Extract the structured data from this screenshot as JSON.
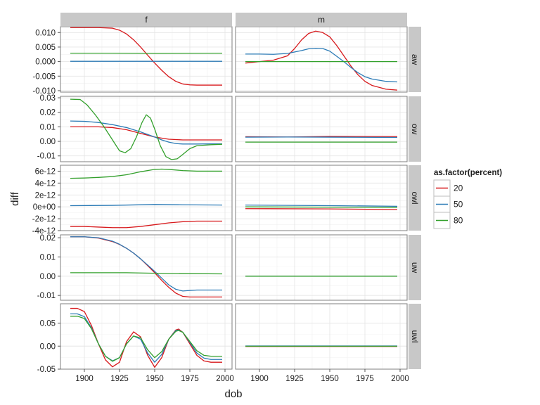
{
  "chart_data": {
    "type": "line",
    "xlabel": "dob",
    "ylabel": "diff",
    "xlim": [
      1883,
      2005
    ],
    "x_ticks": [
      1900,
      1925,
      1950,
      1975,
      2000
    ],
    "x_tick_labels": [
      "1900",
      "1925",
      "1950",
      "1975",
      "2000"
    ],
    "facet_cols": [
      "f",
      "m"
    ],
    "facet_rows": [
      "aw",
      "ow",
      "owl",
      "uw",
      "uwl"
    ],
    "legend": {
      "title": "as.factor(percent)",
      "placement": "right",
      "items": [
        {
          "label": "20",
          "color": "#d7191c"
        },
        {
          "label": "50",
          "color": "#2c7bb6"
        },
        {
          "label": "80",
          "color": "#33a02c"
        }
      ]
    },
    "colors": {
      "20": "#d7191c",
      "50": "#2c7bb6",
      "80": "#33a02c"
    },
    "rows": [
      {
        "name": "aw",
        "ylim": [
          -0.0105,
          0.012
        ],
        "y_ticks": [
          -0.01,
          -0.005,
          0,
          0.005,
          0.01
        ],
        "y_tick_labels": [
          "-0.010",
          "-0.005",
          "0.000",
          "0.005",
          "0.010"
        ],
        "panels": {
          "f": [
            {
              "percent": "20",
              "x": [
                1890,
                1900,
                1910,
                1920,
                1925,
                1930,
                1935,
                1940,
                1945,
                1950,
                1955,
                1960,
                1965,
                1970,
                1975,
                1980,
                1990,
                1998
              ],
              "y": [
                0.0117,
                0.0117,
                0.0117,
                0.0115,
                0.0108,
                0.0095,
                0.0075,
                0.005,
                0.0022,
                -0.0005,
                -0.003,
                -0.0052,
                -0.0068,
                -0.0077,
                -0.008,
                -0.0081,
                -0.0081,
                -0.0081
              ]
            },
            {
              "percent": "50",
              "x": [
                1890,
                1998
              ],
              "y": [
                0.0001,
                0.0001
              ]
            },
            {
              "percent": "80",
              "x": [
                1890,
                1920,
                1950,
                1998
              ],
              "y": [
                0.0029,
                0.0029,
                0.0028,
                0.0029
              ]
            }
          ],
          "m": [
            {
              "percent": "20",
              "x": [
                1890,
                1900,
                1910,
                1920,
                1925,
                1930,
                1935,
                1940,
                1945,
                1950,
                1955,
                1960,
                1965,
                1970,
                1975,
                1980,
                1990,
                1998
              ],
              "y": [
                -0.0005,
                0,
                0.0005,
                0.002,
                0.0045,
                0.0075,
                0.0097,
                0.0105,
                0.01,
                0.0085,
                0.0055,
                0.002,
                -0.0015,
                -0.0045,
                -0.0068,
                -0.0082,
                -0.0095,
                -0.0098
              ]
            },
            {
              "percent": "50",
              "x": [
                1890,
                1900,
                1910,
                1920,
                1930,
                1935,
                1940,
                1945,
                1950,
                1955,
                1960,
                1965,
                1970,
                1975,
                1980,
                1990,
                1998
              ],
              "y": [
                0.0026,
                0.0026,
                0.0025,
                0.0028,
                0.0038,
                0.0044,
                0.0046,
                0.0045,
                0.0036,
                0.0018,
                0,
                -0.002,
                -0.0038,
                -0.0052,
                -0.006,
                -0.0068,
                -0.007
              ]
            },
            {
              "percent": "80",
              "x": [
                1890,
                1998
              ],
              "y": [
                0,
                0
              ]
            }
          ]
        }
      },
      {
        "name": "ow",
        "ylim": [
          -0.014,
          0.031
        ],
        "y_ticks": [
          -0.01,
          0,
          0.01,
          0.02,
          0.03
        ],
        "y_tick_labels": [
          "-0.01",
          "0.00",
          "0.01",
          "0.02",
          "0.03"
        ],
        "panels": {
          "f": [
            {
              "percent": "20",
              "x": [
                1890,
                1900,
                1910,
                1920,
                1930,
                1940,
                1950,
                1960,
                1970,
                1980,
                1990,
                1998
              ],
              "y": [
                0.01,
                0.01,
                0.01,
                0.0095,
                0.008,
                0.0055,
                0.003,
                0.0015,
                0.001,
                0.001,
                0.001,
                0.001
              ]
            },
            {
              "percent": "50",
              "x": [
                1890,
                1900,
                1910,
                1920,
                1930,
                1940,
                1950,
                1955,
                1960,
                1965,
                1970,
                1980,
                1990,
                1998
              ],
              "y": [
                0.014,
                0.0138,
                0.013,
                0.0115,
                0.0095,
                0.0065,
                0.003,
                0.001,
                -0.0005,
                -0.0015,
                -0.0018,
                -0.0018,
                -0.0017,
                -0.0017
              ]
            },
            {
              "percent": "80",
              "x": [
                1890,
                1897,
                1902,
                1908,
                1914,
                1920,
                1925,
                1929,
                1933,
                1937,
                1941,
                1944,
                1947,
                1950,
                1954,
                1958,
                1962,
                1966,
                1970,
                1975,
                1980,
                1990,
                1998
              ],
              "y": [
                0.029,
                0.0288,
                0.025,
                0.018,
                0.01,
                0.001,
                -0.0065,
                -0.0078,
                -0.005,
                0.003,
                0.013,
                0.0183,
                0.016,
                0.0085,
                -0.003,
                -0.0105,
                -0.0125,
                -0.012,
                -0.009,
                -0.005,
                -0.003,
                -0.0023,
                -0.002
              ]
            }
          ],
          "m": [
            {
              "percent": "20",
              "x": [
                1890,
                1920,
                1950,
                1998
              ],
              "y": [
                0.0032,
                0.003,
                0.0034,
                0.0033
              ]
            },
            {
              "percent": "50",
              "x": [
                1890,
                1920,
                1950,
                1998
              ],
              "y": [
                0.0029,
                0.003,
                0.0029,
                0.0027
              ]
            },
            {
              "percent": "80",
              "x": [
                1890,
                1998
              ],
              "y": [
                -0.0005,
                -0.0005
              ]
            }
          ]
        }
      },
      {
        "name": "owl",
        "ylim": [
          -4e-12,
          7e-12
        ],
        "y_ticks": [
          -4e-12,
          -2e-12,
          0,
          2e-12,
          4e-12,
          6e-12
        ],
        "y_tick_labels": [
          "-4e-12",
          "-2e-12",
          "0e+00",
          "2e-12",
          "4e-12",
          "6e-12"
        ],
        "panels": {
          "f": [
            {
              "percent": "20",
              "x": [
                1890,
                1900,
                1910,
                1920,
                1925,
                1930,
                1940,
                1950,
                1960,
                1970,
                1980,
                1990,
                1998
              ],
              "y": [
                -3.3e-12,
                -3.3e-12,
                -3.4e-12,
                -3.5e-12,
                -3.5e-12,
                -3.5e-12,
                -3.3e-12,
                -3e-12,
                -2.7e-12,
                -2.5e-12,
                -2.4e-12,
                -2.4e-12,
                -2.4e-12
              ]
            },
            {
              "percent": "50",
              "x": [
                1890,
                1920,
                1950,
                1970,
                1998
              ],
              "y": [
                2e-13,
                2.5e-13,
                4e-13,
                3.5e-13,
                3e-13
              ]
            },
            {
              "percent": "80",
              "x": [
                1890,
                1900,
                1910,
                1920,
                1930,
                1940,
                1950,
                1955,
                1960,
                1970,
                1980,
                1990,
                1998
              ],
              "y": [
                4.8e-12,
                4.85e-12,
                4.95e-12,
                5.1e-12,
                5.4e-12,
                5.9e-12,
                6.3e-12,
                6.35e-12,
                6.3e-12,
                6.1e-12,
                6e-12,
                6e-12,
                6e-12
              ]
            }
          ],
          "m": [
            {
              "percent": "20",
              "x": [
                1890,
                1950,
                1998
              ],
              "y": [
                -3e-13,
                -3.5e-13,
                -4.5e-13
              ]
            },
            {
              "percent": "50",
              "x": [
                1890,
                1950,
                1998
              ],
              "y": [
                3e-13,
                2e-13,
                1e-13
              ]
            },
            {
              "percent": "80",
              "x": [
                1890,
                1950,
                1998
              ],
              "y": [
                0,
                -5e-14,
                -1e-13
              ]
            }
          ]
        }
      },
      {
        "name": "uw",
        "ylim": [
          -0.0125,
          0.0215
        ],
        "y_ticks": [
          -0.01,
          0,
          0.01,
          0.02
        ],
        "y_tick_labels": [
          "-0.01",
          "0.00",
          "0.01",
          "0.02"
        ],
        "panels": {
          "f": [
            {
              "percent": "20",
              "x": [
                1890,
                1900,
                1910,
                1920,
                1925,
                1930,
                1935,
                1940,
                1945,
                1950,
                1955,
                1960,
                1965,
                1970,
                1975,
                1980,
                1990,
                1998
              ],
              "y": [
                0.0205,
                0.0205,
                0.0198,
                0.018,
                0.0165,
                0.0145,
                0.012,
                0.009,
                0.0055,
                0.0018,
                -0.0022,
                -0.0058,
                -0.0088,
                -0.0105,
                -0.0108,
                -0.0108,
                -0.0108,
                -0.0108
              ]
            },
            {
              "percent": "50",
              "x": [
                1890,
                1900,
                1910,
                1920,
                1925,
                1930,
                1935,
                1940,
                1945,
                1950,
                1955,
                1960,
                1965,
                1970,
                1975,
                1980,
                1990,
                1998
              ],
              "y": [
                0.0205,
                0.0205,
                0.02,
                0.0182,
                0.0166,
                0.0145,
                0.012,
                0.009,
                0.0058,
                0.0025,
                -0.001,
                -0.0045,
                -0.0068,
                -0.0077,
                -0.0074,
                -0.0072,
                -0.0072,
                -0.0072
              ]
            },
            {
              "percent": "80",
              "x": [
                1890,
                1930,
                1960,
                1998
              ],
              "y": [
                0.0018,
                0.0018,
                0.0014,
                0.0012
              ]
            }
          ],
          "m": [
            {
              "percent": "20",
              "x": [
                1890,
                1998
              ],
              "y": [
                0,
                0
              ]
            },
            {
              "percent": "50",
              "x": [
                1890,
                1998
              ],
              "y": [
                0,
                0
              ]
            },
            {
              "percent": "80",
              "x": [
                1890,
                1998
              ],
              "y": [
                0,
                0
              ]
            }
          ]
        }
      },
      {
        "name": "uwl",
        "ylim": [
          -0.05,
          0.092
        ],
        "y_ticks": [
          -0.05,
          0,
          0.05
        ],
        "y_tick_labels": [
          "-0.05",
          "0.00",
          "0.05"
        ],
        "panels": {
          "f": [
            {
              "percent": "20",
              "x": [
                1890,
                1895,
                1900,
                1905,
                1910,
                1915,
                1920,
                1925,
                1930,
                1935,
                1940,
                1945,
                1950,
                1955,
                1960,
                1965,
                1967,
                1970,
                1975,
                1980,
                1985,
                1990,
                1998
              ],
              "y": [
                0.082,
                0.082,
                0.075,
                0.045,
                0.005,
                -0.03,
                -0.045,
                -0.035,
                0.01,
                0.031,
                0.02,
                -0.02,
                -0.046,
                -0.025,
                0.015,
                0.035,
                0.037,
                0.03,
                0.005,
                -0.02,
                -0.032,
                -0.035,
                -0.035
              ]
            },
            {
              "percent": "50",
              "x": [
                1890,
                1895,
                1900,
                1905,
                1910,
                1915,
                1920,
                1925,
                1930,
                1935,
                1940,
                1945,
                1950,
                1955,
                1960,
                1965,
                1967,
                1970,
                1975,
                1980,
                1985,
                1990,
                1998
              ],
              "y": [
                0.07,
                0.07,
                0.064,
                0.04,
                0.005,
                -0.022,
                -0.032,
                -0.025,
                0.005,
                0.022,
                0.015,
                -0.015,
                -0.035,
                -0.018,
                0.015,
                0.034,
                0.035,
                0.03,
                0.008,
                -0.015,
                -0.026,
                -0.029,
                -0.029
              ]
            },
            {
              "percent": "80",
              "x": [
                1890,
                1895,
                1900,
                1905,
                1910,
                1915,
                1920,
                1925,
                1930,
                1935,
                1940,
                1945,
                1950,
                1955,
                1960,
                1965,
                1967,
                1970,
                1975,
                1980,
                1985,
                1990,
                1998
              ],
              "y": [
                0.065,
                0.065,
                0.06,
                0.038,
                0.005,
                -0.022,
                -0.033,
                -0.025,
                0.005,
                0.022,
                0.018,
                -0.008,
                -0.025,
                -0.012,
                0.015,
                0.032,
                0.034,
                0.03,
                0.01,
                -0.01,
                -0.02,
                -0.022,
                -0.022
              ]
            }
          ],
          "m": [
            {
              "percent": "20",
              "x": [
                1890,
                1998
              ],
              "y": [
                -0.0007,
                -0.0007
              ]
            },
            {
              "percent": "50",
              "x": [
                1890,
                1998
              ],
              "y": [
                0.0003,
                0.0003
              ]
            },
            {
              "percent": "80",
              "x": [
                1890,
                1998
              ],
              "y": [
                -0.0002,
                -0.0002
              ]
            }
          ]
        }
      }
    ]
  }
}
